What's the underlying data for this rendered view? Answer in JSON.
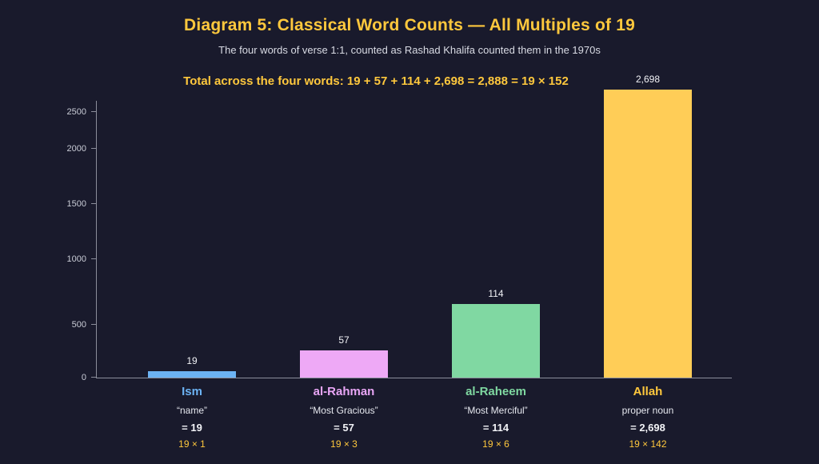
{
  "page": {
    "background_color": "#191a2c",
    "accent_yellow": "#ffc83d",
    "axis_color": "#8b8e9b"
  },
  "header": {
    "title": "Diagram 5: Classical Word Counts — All Multiples of 19",
    "subtitle": "The four words of verse 1:1, counted as Rashad Khalifa counted them in the 1970s",
    "annotation": "Total across the four words: 19 + 57 + 114 + 2,698 = 2,888 = 19 × 152"
  },
  "chart_data": {
    "type": "bar",
    "title": "Diagram 5: Classical Word Counts — All Multiples of 19",
    "subtitle": "The four words of verse 1:1, counted as Rashad Khalifa counted them in the 1970s",
    "annotation": "Total across the four words: 19 + 57 + 114 + 2,698 = 2,888 = 19 × 152",
    "categories": [
      "Ism",
      "al-Rahman",
      "al-Raheem",
      "Allah"
    ],
    "values": [
      19,
      57,
      114,
      2698
    ],
    "value_labels": [
      "19",
      "57",
      "114",
      "2,698"
    ],
    "bar_colors": [
      "#6cb3f4",
      "#eea9f6",
      "#80d8a2",
      "#ffcd57"
    ],
    "label_colors": [
      "#6cb3f4",
      "#e9a6f6",
      "#7fd8a1",
      "#ffc83d"
    ],
    "glosses": [
      "“name”",
      "“Most Gracious”",
      "“Most Merciful”",
      "proper noun"
    ],
    "equals_labels": [
      "= 19",
      "= 57",
      "= 114",
      "= 2,698"
    ],
    "multiple_labels": [
      "19 × 1",
      "19 × 3",
      "19 × 6",
      "19 × 142"
    ],
    "y_ticks": [
      "0",
      "500",
      "1000",
      "1500",
      "2000",
      "2500"
    ],
    "ylim": [
      0,
      2700
    ],
    "xlabel": "",
    "ylabel": "",
    "grid": false,
    "legend": false,
    "layout_hints": {
      "bar_height_pct": [
        2.2,
        9.4,
        25.6,
        100
      ],
      "tick_pos_pct": [
        0,
        18.3,
        41,
        60.4,
        79.5,
        92.2
      ]
    }
  }
}
